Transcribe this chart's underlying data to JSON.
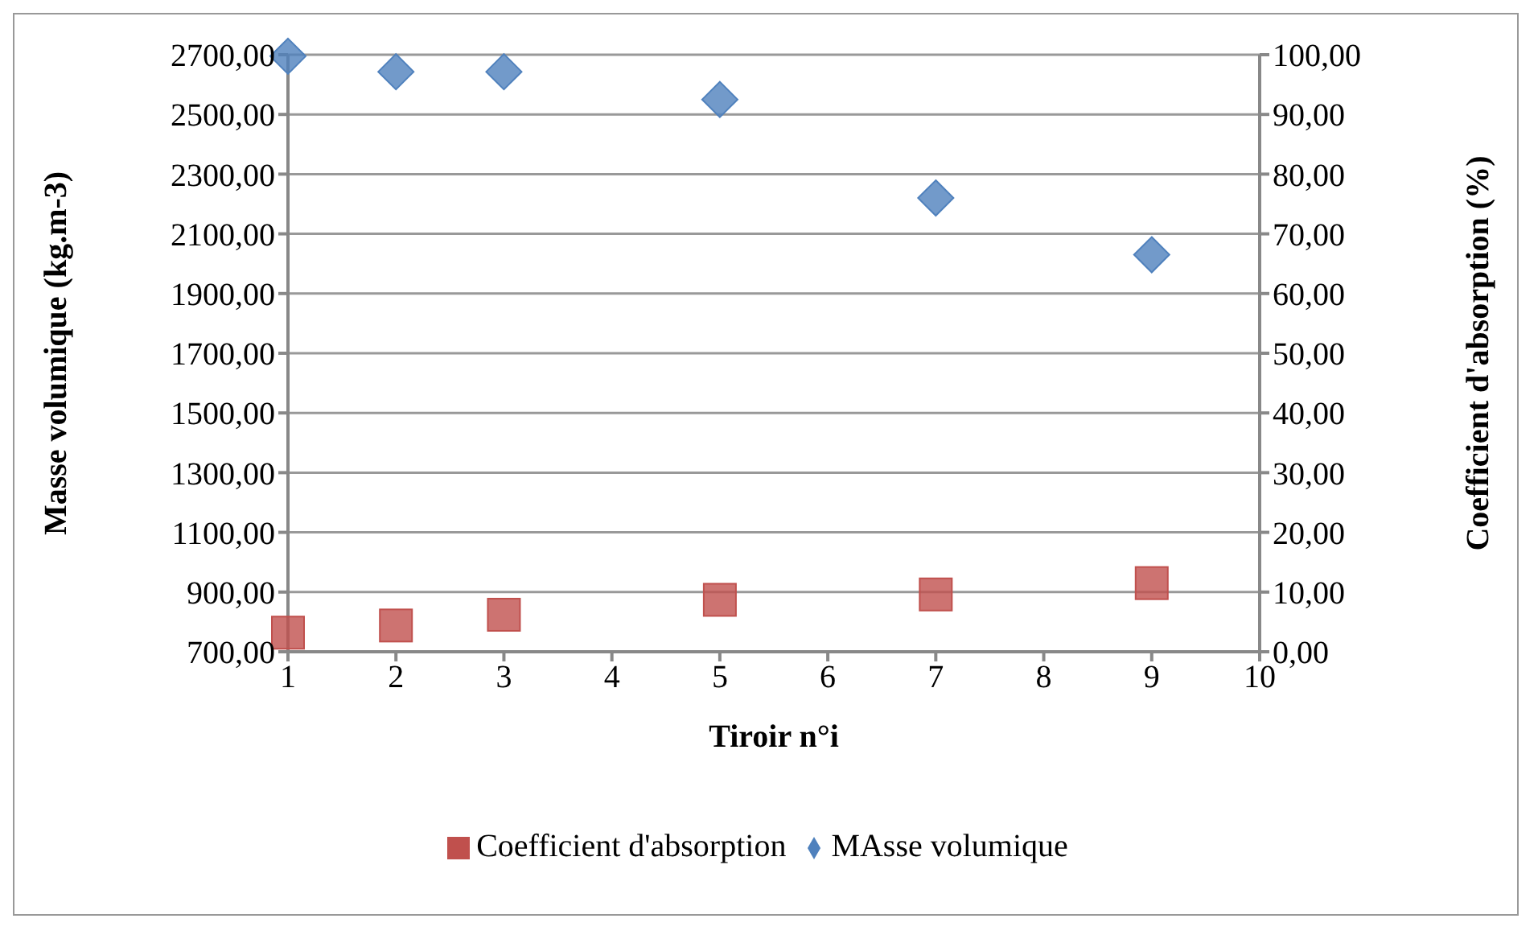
{
  "chart_data": {
    "type": "scatter",
    "xlabel": "Tiroir n°i",
    "ylabel": "Masse volumique (kg.m-3)",
    "y2label": "Coefficient d'absorption (%)",
    "xlim": [
      1,
      10
    ],
    "xticks": [
      1,
      2,
      3,
      4,
      5,
      6,
      7,
      8,
      9,
      10
    ],
    "ylim": [
      700,
      2700
    ],
    "yticks": [
      {
        "value": 700,
        "label": "700,00"
      },
      {
        "value": 900,
        "label": "900,00"
      },
      {
        "value": 1100,
        "label": "1100,00"
      },
      {
        "value": 1300,
        "label": "1300,00"
      },
      {
        "value": 1500,
        "label": "1500,00"
      },
      {
        "value": 1700,
        "label": "1700,00"
      },
      {
        "value": 1900,
        "label": "1900,00"
      },
      {
        "value": 2100,
        "label": "2100,00"
      },
      {
        "value": 2300,
        "label": "2300,00"
      },
      {
        "value": 2500,
        "label": "2500,00"
      },
      {
        "value": 2700,
        "label": "2700,00"
      }
    ],
    "y2lim": [
      0,
      100
    ],
    "y2ticks": [
      {
        "value": 0,
        "label": "0,00"
      },
      {
        "value": 10,
        "label": "10,00"
      },
      {
        "value": 20,
        "label": "20,00"
      },
      {
        "value": 30,
        "label": "30,00"
      },
      {
        "value": 40,
        "label": "40,00"
      },
      {
        "value": 50,
        "label": "50,00"
      },
      {
        "value": 60,
        "label": "60,00"
      },
      {
        "value": 70,
        "label": "70,00"
      },
      {
        "value": 80,
        "label": "80,00"
      },
      {
        "value": 90,
        "label": "90,00"
      },
      {
        "value": 100,
        "label": "100,00"
      }
    ],
    "x": [
      1,
      2,
      3,
      5,
      7,
      9
    ],
    "grid": "y",
    "legend": "bottom",
    "series": [
      {
        "name": "MAsse volumique",
        "color": "#4f81bd",
        "marker": "diamond",
        "values": [
          2695,
          2643,
          2643,
          2550,
          2220,
          2030
        ]
      },
      {
        "name": "Coefficient d'absorption",
        "color": "#c0504d",
        "marker": "square",
        "axis": "y2",
        "values": [
          3.2,
          4.4,
          6.2,
          8.7,
          9.6,
          11.5
        ]
      }
    ]
  }
}
